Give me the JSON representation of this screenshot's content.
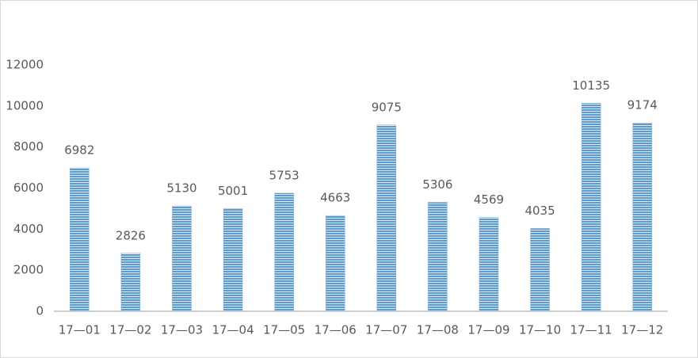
{
  "chart_data": {
    "type": "bar",
    "categories": [
      "17—01",
      "17—02",
      "17—03",
      "17—04",
      "17—05",
      "17—06",
      "17—07",
      "17—08",
      "17—09",
      "17—10",
      "17—11",
      "17—12"
    ],
    "values": [
      6982,
      2826,
      5130,
      5001,
      5753,
      4663,
      9075,
      5306,
      4569,
      4035,
      10135,
      9174
    ],
    "color": "#5b9bd5",
    "ylim": [
      0,
      12000
    ],
    "yticks": [
      0,
      2000,
      4000,
      6000,
      8000,
      10000,
      12000
    ],
    "grid": false
  }
}
